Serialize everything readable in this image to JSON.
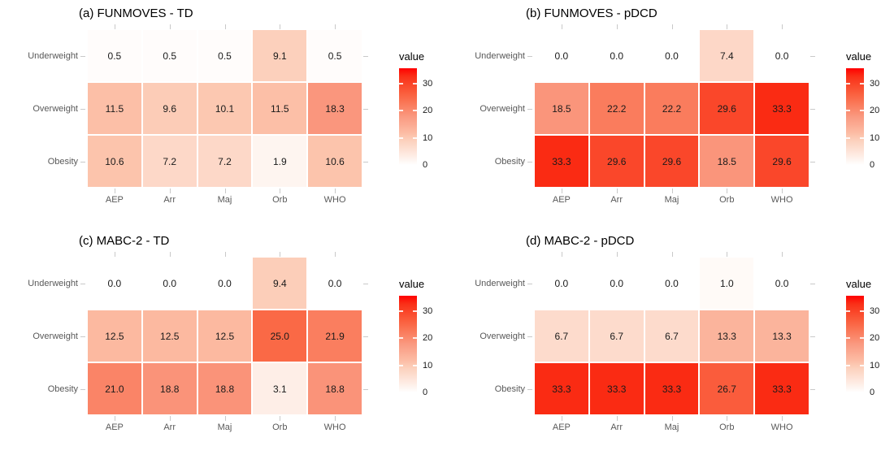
{
  "figure": {
    "background": "#FFFFFF"
  },
  "colors": {
    "scale_low": "#FFFFFF",
    "scale_high": "#FF0000",
    "axis_tick": "#C9C9C9",
    "axis_label_text": "#595959",
    "title_text": "#000000",
    "cell_text": "#1A1A1A",
    "legend_text": "#1A1A1A"
  },
  "color_scale_anchors": [
    [
      0.0,
      "#FFFFFF"
    ],
    [
      7.2,
      "#FDD8C8"
    ],
    [
      9.1,
      "#FCD0BC"
    ],
    [
      10.6,
      "#FCC4AC"
    ],
    [
      18.3,
      "#FA967D"
    ],
    [
      25.0,
      "#FA6946"
    ],
    [
      33.3,
      "#FA2B13"
    ],
    [
      35.7,
      "#FF0000"
    ]
  ],
  "legend": {
    "title": "value",
    "tick_values": [
      30,
      20,
      10,
      0
    ],
    "tick_labels": [
      "30",
      "20",
      "10",
      "0"
    ],
    "max_value": 35.7,
    "min_value": 0
  },
  "chart_data": [
    {
      "type": "heatmap",
      "title": "(a) FUNMOVES - TD",
      "rows": [
        "Underweight",
        "Overweight",
        "Obesity"
      ],
      "columns": [
        "AEP",
        "Arr",
        "Maj",
        "Orb",
        "WHO"
      ],
      "values": [
        [
          0.5,
          0.5,
          0.5,
          9.1,
          0.5
        ],
        [
          11.5,
          9.6,
          10.1,
          11.5,
          18.3
        ],
        [
          10.6,
          7.2,
          7.2,
          1.9,
          10.6
        ]
      ],
      "legend_title": "value",
      "color_low": "#FFFFFF",
      "color_high": "#FF0000"
    },
    {
      "type": "heatmap",
      "title": "(b) FUNMOVES - pDCD",
      "rows": [
        "Underweight",
        "Overweight",
        "Obesity"
      ],
      "columns": [
        "AEP",
        "Arr",
        "Maj",
        "Orb",
        "WHO"
      ],
      "values": [
        [
          0.0,
          0.0,
          0.0,
          7.4,
          0.0
        ],
        [
          18.5,
          22.2,
          22.2,
          29.6,
          33.3
        ],
        [
          33.3,
          29.6,
          29.6,
          18.5,
          29.6
        ]
      ],
      "legend_title": "value",
      "color_low": "#FFFFFF",
      "color_high": "#FF0000"
    },
    {
      "type": "heatmap",
      "title": "(c) MABC-2 - TD",
      "rows": [
        "Underweight",
        "Overweight",
        "Obesity"
      ],
      "columns": [
        "AEP",
        "Arr",
        "Maj",
        "Orb",
        "WHO"
      ],
      "values": [
        [
          0.0,
          0.0,
          0.0,
          9.4,
          0.0
        ],
        [
          12.5,
          12.5,
          12.5,
          25.0,
          21.9
        ],
        [
          21.0,
          18.8,
          18.8,
          3.1,
          18.8
        ]
      ],
      "legend_title": "value",
      "color_low": "#FFFFFF",
      "color_high": "#FF0000"
    },
    {
      "type": "heatmap",
      "title": "(d) MABC-2 - pDCD",
      "rows": [
        "Underweight",
        "Overweight",
        "Obesity"
      ],
      "columns": [
        "AEP",
        "Arr",
        "Maj",
        "Orb",
        "WHO"
      ],
      "values": [
        [
          0.0,
          0.0,
          0.0,
          1.0,
          0.0
        ],
        [
          6.7,
          6.7,
          6.7,
          13.3,
          13.3
        ],
        [
          33.3,
          33.3,
          33.3,
          26.7,
          33.3
        ]
      ],
      "legend_title": "value",
      "color_low": "#FFFFFF",
      "color_high": "#FF0000"
    }
  ]
}
